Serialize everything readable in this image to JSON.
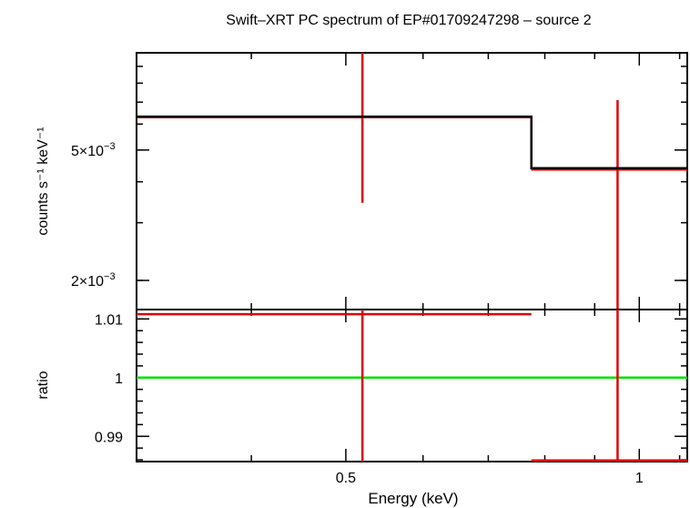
{
  "chart_data": {
    "type": "line",
    "title": "Swift–XRT PC spectrum of EP#01709247298 – source 2",
    "xlabel": "Energy (keV)",
    "x_scale": "log",
    "xlim": [
      0.305,
      1.12
    ],
    "x_ticks": [
      {
        "value": 0.5,
        "label": "0.5"
      },
      {
        "value": 1,
        "label": "1"
      }
    ],
    "panels": [
      {
        "id": "spectrum",
        "ylabel": "counts s⁻¹ keV⁻¹",
        "y_scale": "log",
        "ylim": [
          0.00163,
          0.0099
        ],
        "y_ticks": [
          {
            "value": 0.005,
            "mantissa": "5×10",
            "exponent": "−3"
          },
          {
            "value": 0.002,
            "mantissa": "2×10",
            "exponent": "−3"
          }
        ],
        "series": [
          {
            "kind": "data",
            "color": "#e00000",
            "points": [
              {
                "x": 0.52,
                "xlo": 0.305,
                "xhi": 0.775,
                "y": 0.0063,
                "ylo": 0.00345,
                "yhi": 0.0099
              },
              {
                "x": 0.95,
                "xlo": 0.775,
                "xhi": 1.12,
                "y": 0.00436,
                "ylo": 0.00163,
                "yhi": 0.0071
              }
            ]
          },
          {
            "kind": "model",
            "color": "#000000",
            "steps": [
              {
                "xlo": 0.305,
                "xhi": 0.775,
                "y": 0.00632
              },
              {
                "xlo": 0.775,
                "xhi": 1.12,
                "y": 0.0044
              }
            ]
          }
        ]
      },
      {
        "id": "ratio",
        "ylabel": "ratio",
        "y_scale": "linear",
        "ylim": [
          0.9857,
          1.0116
        ],
        "y_ticks": [
          {
            "value": 1.01,
            "label": "1.01"
          },
          {
            "value": 1,
            "label": "1"
          },
          {
            "value": 0.99,
            "label": "0.99"
          }
        ],
        "reference_line": {
          "y": 1,
          "color": "#00e000"
        },
        "series": [
          {
            "kind": "data",
            "color": "#e00000",
            "points": [
              {
                "x": 0.52,
                "xlo": 0.305,
                "xhi": 0.775,
                "y": 1.0108,
                "ylo": 0.9857,
                "yhi": 1.0116
              },
              {
                "x": 0.95,
                "xlo": 0.775,
                "xhi": 1.12,
                "y": 0.9859,
                "ylo": 0.9857,
                "yhi": 1.0116
              }
            ]
          }
        ]
      }
    ]
  }
}
